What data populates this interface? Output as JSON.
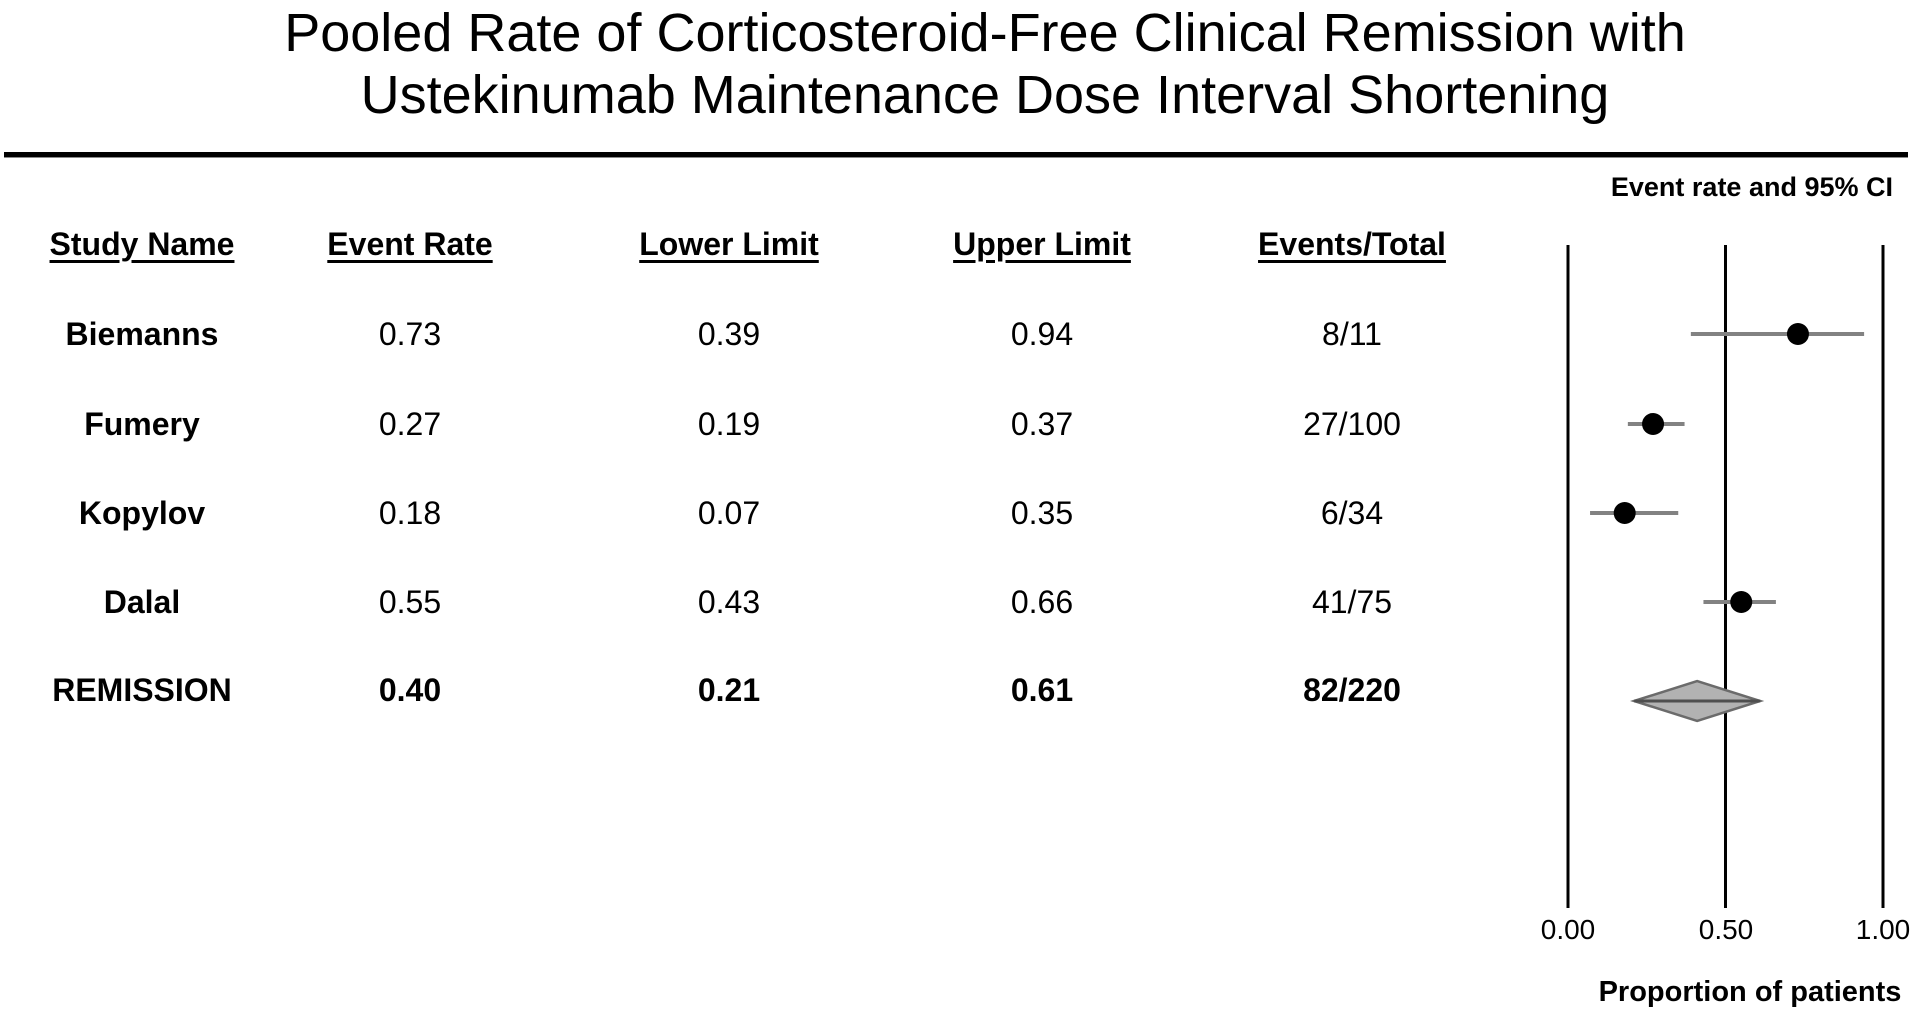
{
  "title": {
    "line1": "Pooled Rate of Corticosteroid-Free Clinical Remission with",
    "line2": "Ustekinumab Maintenance Dose Interval Shortening"
  },
  "plot_header": "Event rate and 95% CI",
  "axis": {
    "ticks": [
      "0.00",
      "0.50",
      "1.00"
    ],
    "tick_values": [
      0,
      0.5,
      1
    ],
    "label": "Proportion of patients",
    "min": 0,
    "max": 1
  },
  "table": {
    "columns": [
      "Study Name",
      "Event Rate",
      "Lower Limit",
      "Upper Limit",
      "Events/Total"
    ],
    "rows": [
      {
        "study": "Biemanns",
        "event_rate": "0.73",
        "lower": "0.39",
        "upper": "0.94",
        "events_total": "8/11",
        "bold": false
      },
      {
        "study": "Fumery",
        "event_rate": "0.27",
        "lower": "0.19",
        "upper": "0.37",
        "events_total": "27/100",
        "bold": false
      },
      {
        "study": "Kopylov",
        "event_rate": "0.18",
        "lower": "0.07",
        "upper": "0.35",
        "events_total": "6/34",
        "bold": false
      },
      {
        "study": "Dalal",
        "event_rate": "0.55",
        "lower": "0.43",
        "upper": "0.66",
        "events_total": "41/75",
        "bold": false
      },
      {
        "study": "REMISSION",
        "event_rate": "0.40",
        "lower": "0.21",
        "upper": "0.61",
        "events_total": "82/220",
        "bold": true
      }
    ]
  },
  "chart_data": {
    "type": "scatter",
    "subtype": "forest-plot",
    "title": "Pooled Rate of Corticosteroid-Free Clinical Remission with Ustekinumab Maintenance Dose Interval Shortening",
    "xlabel": "Proportion of patients",
    "legend": "Event rate and 95% CI",
    "xlim": [
      0,
      1
    ],
    "xticks": [
      0,
      0.5,
      1
    ],
    "grid": false,
    "studies": [
      {
        "name": "Biemanns",
        "event_rate": 0.73,
        "lower": 0.39,
        "upper": 0.94,
        "events": 8,
        "total": 11
      },
      {
        "name": "Fumery",
        "event_rate": 0.27,
        "lower": 0.19,
        "upper": 0.37,
        "events": 27,
        "total": 100
      },
      {
        "name": "Kopylov",
        "event_rate": 0.18,
        "lower": 0.07,
        "upper": 0.35,
        "events": 6,
        "total": 34
      },
      {
        "name": "Dalal",
        "event_rate": 0.55,
        "lower": 0.43,
        "upper": 0.66,
        "events": 41,
        "total": 75
      }
    ],
    "pooled": {
      "name": "REMISSION",
      "event_rate": 0.4,
      "lower": 0.21,
      "upper": 0.61,
      "events": 82,
      "total": 220,
      "marker": "diamond"
    }
  },
  "colors": {
    "ci_line": "#828282",
    "marker": "#000000",
    "axis_line": "#000000",
    "diamond_fill": "#b2b2b2",
    "diamond_stroke": "#6b6b6b",
    "diamond_midline": "#4f4f4f"
  }
}
